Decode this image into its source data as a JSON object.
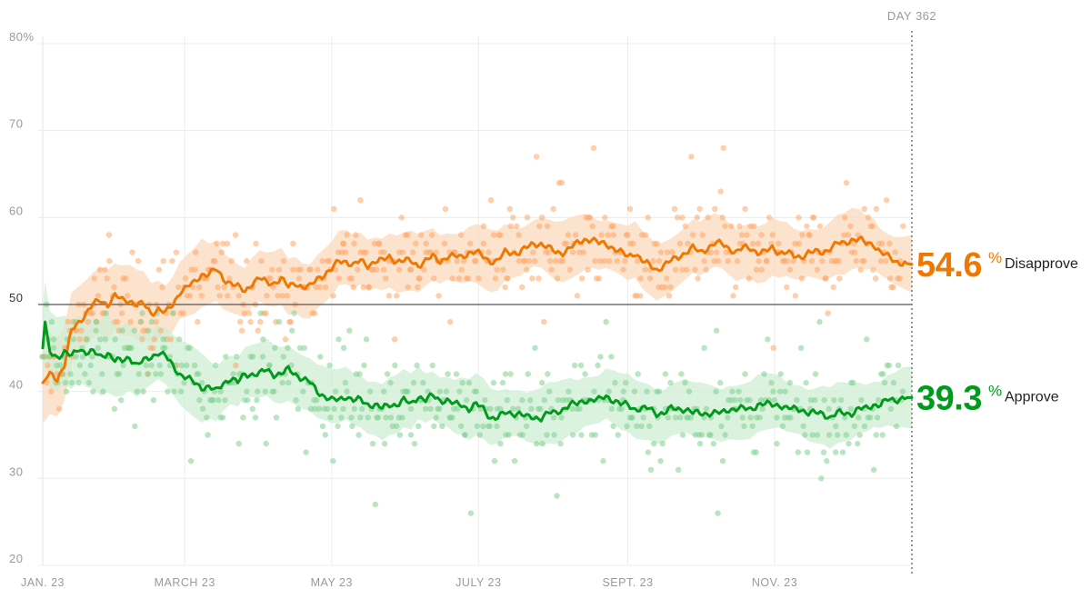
{
  "chart_data": {
    "type": "line",
    "title": "",
    "xlabel": "",
    "ylabel": "",
    "ylim": [
      20,
      80
    ],
    "y_ticks": [
      20,
      30,
      40,
      50,
      60,
      70,
      80
    ],
    "y_tick_labels": [
      "20",
      "30",
      "40",
      "50",
      "60",
      "70",
      "80%"
    ],
    "x_range_days": [
      1,
      362
    ],
    "x_ticks": [
      {
        "day": 1,
        "label": "JAN. 23"
      },
      {
        "day": 60,
        "label": "MARCH 23"
      },
      {
        "day": 121,
        "label": "MAY 23"
      },
      {
        "day": 182,
        "label": "JULY 23"
      },
      {
        "day": 244,
        "label": "SEPT. 23"
      },
      {
        "day": 305,
        "label": "NOV. 23"
      }
    ],
    "reference_line": 50,
    "marker": {
      "day": 362,
      "label": "DAY 362"
    },
    "series": [
      {
        "name": "Disapprove",
        "color": "#f07800",
        "dot_color": "#ffa666",
        "band_color": "#fbd9bc",
        "final_value": "54.6",
        "unit": "%",
        "trend": [
          [
            1,
            41
          ],
          [
            4,
            42
          ],
          [
            7,
            41.5
          ],
          [
            10,
            43
          ],
          [
            13,
            47
          ],
          [
            16,
            48
          ],
          [
            19,
            49
          ],
          [
            22,
            50
          ],
          [
            25,
            50.5
          ],
          [
            28,
            50
          ],
          [
            31,
            51
          ],
          [
            34,
            50.5
          ],
          [
            37,
            50.5
          ],
          [
            40,
            50
          ],
          [
            43,
            50
          ],
          [
            46,
            49
          ],
          [
            49,
            49.5
          ],
          [
            52,
            49
          ],
          [
            55,
            50
          ],
          [
            58,
            51.5
          ],
          [
            61,
            52
          ],
          [
            64,
            52.5
          ],
          [
            67,
            53.5
          ],
          [
            70,
            53.5
          ],
          [
            73,
            54
          ],
          [
            76,
            53
          ],
          [
            79,
            52.5
          ],
          [
            82,
            52
          ],
          [
            85,
            51.5
          ],
          [
            88,
            52.5
          ],
          [
            91,
            53
          ],
          [
            94,
            52.5
          ],
          [
            97,
            52.5
          ],
          [
            100,
            53
          ],
          [
            103,
            52
          ],
          [
            106,
            52.5
          ],
          [
            109,
            52
          ],
          [
            112,
            52
          ],
          [
            115,
            53
          ],
          [
            118,
            53.5
          ],
          [
            121,
            54
          ],
          [
            124,
            55
          ],
          [
            127,
            55
          ],
          [
            130,
            54.5
          ],
          [
            133,
            55
          ],
          [
            136,
            54.5
          ],
          [
            139,
            55
          ],
          [
            142,
            55
          ],
          [
            145,
            55.5
          ],
          [
            148,
            55
          ],
          [
            151,
            55
          ],
          [
            154,
            55
          ],
          [
            157,
            54.5
          ],
          [
            160,
            55
          ],
          [
            163,
            55.5
          ],
          [
            166,
            55
          ],
          [
            169,
            55.5
          ],
          [
            172,
            55.5
          ],
          [
            175,
            55.5
          ],
          [
            178,
            56
          ],
          [
            181,
            56
          ],
          [
            184,
            55.5
          ],
          [
            187,
            55
          ],
          [
            190,
            55
          ],
          [
            193,
            56
          ],
          [
            196,
            56
          ],
          [
            199,
            56
          ],
          [
            202,
            56.5
          ],
          [
            205,
            57
          ],
          [
            208,
            57
          ],
          [
            211,
            56.5
          ],
          [
            214,
            56
          ],
          [
            217,
            56
          ],
          [
            220,
            56.5
          ],
          [
            223,
            57
          ],
          [
            226,
            57.5
          ],
          [
            229,
            57.5
          ],
          [
            232,
            57
          ],
          [
            235,
            57
          ],
          [
            238,
            56.5
          ],
          [
            241,
            56
          ],
          [
            244,
            55.5
          ],
          [
            247,
            56
          ],
          [
            250,
            55
          ],
          [
            253,
            54.5
          ],
          [
            256,
            54
          ],
          [
            259,
            54.5
          ],
          [
            262,
            55
          ],
          [
            265,
            55.5
          ],
          [
            268,
            56
          ],
          [
            271,
            56.5
          ],
          [
            274,
            56
          ],
          [
            277,
            56.5
          ],
          [
            280,
            57
          ],
          [
            283,
            57
          ],
          [
            286,
            56.5
          ],
          [
            289,
            56
          ],
          [
            292,
            56.5
          ],
          [
            295,
            56.5
          ],
          [
            298,
            56
          ],
          [
            301,
            56
          ],
          [
            304,
            56.5
          ],
          [
            307,
            56
          ],
          [
            310,
            56
          ],
          [
            313,
            55.5
          ],
          [
            316,
            55.5
          ],
          [
            319,
            56
          ],
          [
            322,
            56
          ],
          [
            325,
            56
          ],
          [
            328,
            56.5
          ],
          [
            331,
            57
          ],
          [
            334,
            57
          ],
          [
            337,
            57.5
          ],
          [
            340,
            57.5
          ],
          [
            343,
            57
          ],
          [
            346,
            57
          ],
          [
            349,
            56
          ],
          [
            352,
            55.5
          ],
          [
            355,
            55
          ],
          [
            358,
            54.8
          ],
          [
            362,
            54.6
          ]
        ]
      },
      {
        "name": "Approve",
        "color": "#009a1d",
        "dot_color": "#7fd18f",
        "band_color": "#cdeed3",
        "final_value": "39.3",
        "unit": "%",
        "trend": [
          [
            1,
            45
          ],
          [
            2,
            48
          ],
          [
            4,
            44.5
          ],
          [
            7,
            44
          ],
          [
            10,
            44.5
          ],
          [
            13,
            44
          ],
          [
            16,
            45
          ],
          [
            19,
            44.5
          ],
          [
            22,
            44.5
          ],
          [
            25,
            44
          ],
          [
            28,
            44.5
          ],
          [
            31,
            43.5
          ],
          [
            34,
            43.5
          ],
          [
            37,
            44
          ],
          [
            40,
            43
          ],
          [
            43,
            43.5
          ],
          [
            46,
            44
          ],
          [
            49,
            44.5
          ],
          [
            52,
            44
          ],
          [
            55,
            43
          ],
          [
            58,
            42
          ],
          [
            61,
            41.5
          ],
          [
            64,
            41
          ],
          [
            67,
            40.5
          ],
          [
            70,
            40.5
          ],
          [
            73,
            40
          ],
          [
            76,
            41
          ],
          [
            79,
            41.5
          ],
          [
            82,
            41
          ],
          [
            85,
            42
          ],
          [
            88,
            42
          ],
          [
            91,
            42
          ],
          [
            94,
            42.5
          ],
          [
            97,
            42
          ],
          [
            100,
            42
          ],
          [
            103,
            42.5
          ],
          [
            106,
            42
          ],
          [
            109,
            41.5
          ],
          [
            112,
            41
          ],
          [
            115,
            40
          ],
          [
            118,
            39.5
          ],
          [
            121,
            39
          ],
          [
            124,
            39
          ],
          [
            127,
            39.5
          ],
          [
            130,
            39
          ],
          [
            133,
            39
          ],
          [
            136,
            38.5
          ],
          [
            139,
            38.5
          ],
          [
            142,
            38
          ],
          [
            145,
            38.5
          ],
          [
            148,
            38.5
          ],
          [
            151,
            39
          ],
          [
            154,
            38.5
          ],
          [
            157,
            39.5
          ],
          [
            160,
            39
          ],
          [
            163,
            39.5
          ],
          [
            166,
            39
          ],
          [
            169,
            39
          ],
          [
            172,
            38.5
          ],
          [
            175,
            38.5
          ],
          [
            178,
            38
          ],
          [
            181,
            38.5
          ],
          [
            184,
            38
          ],
          [
            187,
            37
          ],
          [
            190,
            37
          ],
          [
            193,
            37.5
          ],
          [
            196,
            37.5
          ],
          [
            199,
            37.5
          ],
          [
            202,
            37
          ],
          [
            205,
            37
          ],
          [
            208,
            37
          ],
          [
            211,
            37.5
          ],
          [
            214,
            37.5
          ],
          [
            217,
            38
          ],
          [
            220,
            38.5
          ],
          [
            223,
            38.5
          ],
          [
            226,
            39
          ],
          [
            229,
            39
          ],
          [
            232,
            39
          ],
          [
            235,
            39.5
          ],
          [
            238,
            39
          ],
          [
            241,
            38.5
          ],
          [
            244,
            38.5
          ],
          [
            247,
            38
          ],
          [
            250,
            38
          ],
          [
            253,
            38
          ],
          [
            256,
            37.5
          ],
          [
            259,
            37.5
          ],
          [
            262,
            38
          ],
          [
            265,
            38
          ],
          [
            268,
            38
          ],
          [
            271,
            37.5
          ],
          [
            274,
            37.5
          ],
          [
            277,
            37.5
          ],
          [
            280,
            37.5
          ],
          [
            283,
            37.5
          ],
          [
            286,
            38
          ],
          [
            289,
            38
          ],
          [
            292,
            38
          ],
          [
            295,
            38
          ],
          [
            298,
            38.5
          ],
          [
            301,
            38.5
          ],
          [
            304,
            38.5
          ],
          [
            307,
            38.5
          ],
          [
            310,
            38
          ],
          [
            313,
            38
          ],
          [
            316,
            38
          ],
          [
            319,
            37.5
          ],
          [
            322,
            37.5
          ],
          [
            325,
            37.5
          ],
          [
            328,
            37
          ],
          [
            331,
            37.5
          ],
          [
            334,
            37.5
          ],
          [
            337,
            37.5
          ],
          [
            340,
            38
          ],
          [
            343,
            38
          ],
          [
            346,
            38.5
          ],
          [
            349,
            38.5
          ],
          [
            352,
            39
          ],
          [
            355,
            39
          ],
          [
            358,
            39.3
          ],
          [
            362,
            39.3
          ]
        ]
      }
    ]
  }
}
